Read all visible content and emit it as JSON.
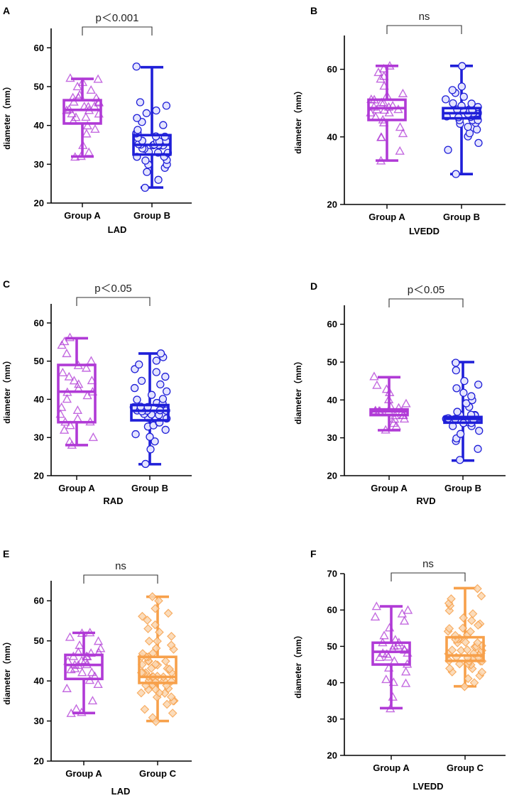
{
  "figure": {
    "title": ""
  },
  "colors": {
    "Group A": "#b03ad6",
    "Group B": "#1f1fd8",
    "Group C": "#f7a04a"
  },
  "markers": {
    "Group A": "triangle",
    "Group B": "circle",
    "Group C": "diamond"
  },
  "chart_data": [
    {
      "id": "A",
      "panel_label": "A",
      "type": "box",
      "xlabel": "LAD",
      "ylabel": "diameter（mm）",
      "ylim": [
        20,
        65
      ],
      "yticks": [
        20,
        30,
        40,
        50,
        60
      ],
      "categories": [
        "Group A",
        "Group B"
      ],
      "significance": "p＜0.001",
      "boxes": [
        {
          "name": "Group A",
          "min": 32,
          "q1": 40.5,
          "median": 44,
          "q3": 46.5,
          "max": 52,
          "points": [
            32,
            32,
            33,
            35,
            38,
            39,
            40,
            41,
            42,
            42,
            43,
            43,
            44,
            44,
            44,
            45,
            45,
            45,
            46,
            46,
            46,
            47,
            47,
            47,
            48,
            49,
            50,
            51,
            52,
            52
          ]
        },
        {
          "name": "Group B",
          "min": 24,
          "q1": 32.5,
          "median": 35,
          "q3": 37.5,
          "max": 55,
          "points": [
            24,
            26,
            28,
            29,
            30,
            30,
            31,
            31,
            32,
            32,
            33,
            33,
            33,
            34,
            34,
            35,
            35,
            35,
            35,
            35,
            35,
            35,
            35,
            36,
            36,
            36,
            36,
            37,
            37,
            37,
            38,
            38,
            39,
            40,
            41,
            42,
            43,
            44,
            45,
            46,
            55
          ]
        }
      ]
    },
    {
      "id": "B",
      "panel_label": "B",
      "type": "box",
      "xlabel": "LVEDD",
      "ylabel": "diameter（mm）",
      "ylim": [
        20,
        70
      ],
      "yticks": [
        20,
        40,
        60
      ],
      "categories": [
        "Group A",
        "Group B"
      ],
      "significance": "ns",
      "boxes": [
        {
          "name": "Group A",
          "min": 33,
          "q1": 45,
          "median": 48.5,
          "q3": 51,
          "max": 61,
          "points": [
            33,
            36,
            40,
            40,
            41,
            43,
            44,
            45,
            46,
            47,
            47,
            48,
            48,
            48,
            49,
            49,
            49,
            50,
            50,
            51,
            51,
            52,
            53,
            55,
            57,
            58,
            59,
            60,
            61
          ]
        },
        {
          "name": "Group B",
          "min": 29,
          "q1": 45.5,
          "median": 47,
          "q3": 48.5,
          "max": 61,
          "points": [
            29,
            36,
            38,
            40,
            41,
            42,
            43,
            44,
            44,
            45,
            45,
            45,
            46,
            46,
            46,
            46,
            47,
            47,
            47,
            47,
            47,
            47,
            47,
            48,
            48,
            48,
            48,
            49,
            49,
            50,
            50,
            51,
            52,
            53,
            54,
            55,
            61
          ]
        }
      ]
    },
    {
      "id": "C",
      "panel_label": "C",
      "type": "box",
      "xlabel": "RAD",
      "ylabel": "diameter（mm）",
      "ylim": [
        20,
        65
      ],
      "yticks": [
        20,
        30,
        40,
        50,
        60
      ],
      "categories": [
        "Group A",
        "Group B"
      ],
      "significance": "p＜0.05",
      "boxes": [
        {
          "name": "Group A",
          "min": 28,
          "q1": 34,
          "median": 42,
          "q3": 49,
          "max": 56,
          "points": [
            28,
            29,
            30,
            32,
            33,
            34,
            34,
            35,
            36,
            37,
            38,
            40,
            41,
            42,
            42,
            43,
            44,
            45,
            45,
            46,
            47,
            48,
            49,
            50,
            52,
            54,
            55,
            56
          ]
        },
        {
          "name": "Group B",
          "min": 23,
          "q1": 34.5,
          "median": 37,
          "q3": 38.5,
          "max": 52,
          "points": [
            23,
            27,
            29,
            30,
            31,
            32,
            33,
            33,
            34,
            34,
            35,
            35,
            35,
            36,
            36,
            36,
            37,
            37,
            37,
            37,
            37,
            37,
            37,
            38,
            38,
            38,
            39,
            39,
            40,
            40,
            41,
            42,
            43,
            44,
            45,
            46,
            47,
            48,
            49,
            50,
            51,
            52
          ]
        }
      ]
    },
    {
      "id": "D",
      "panel_label": "D",
      "type": "box",
      "xlabel": "RVD",
      "ylabel": "diameter（mm）",
      "ylim": [
        20,
        65
      ],
      "yticks": [
        20,
        30,
        40,
        50,
        60
      ],
      "categories": [
        "Group A",
        "Group B"
      ],
      "significance": "p＜0.05",
      "boxes": [
        {
          "name": "Group A",
          "min": 32,
          "q1": 36,
          "median": 37,
          "q3": 37.5,
          "max": 46,
          "points": [
            32,
            33,
            34,
            35,
            35,
            36,
            36,
            36,
            37,
            37,
            37,
            37,
            37,
            37,
            38,
            38,
            39,
            40,
            42,
            43,
            44,
            46
          ]
        },
        {
          "name": "Group B",
          "min": 24,
          "q1": 34,
          "median": 35,
          "q3": 35.5,
          "max": 50,
          "points": [
            24,
            27,
            29,
            30,
            31,
            32,
            33,
            33,
            34,
            34,
            34,
            35,
            35,
            35,
            35,
            35,
            35,
            35,
            35,
            35,
            36,
            36,
            36,
            36,
            37,
            38,
            39,
            40,
            41,
            42,
            43,
            44,
            45,
            48,
            50
          ]
        }
      ]
    },
    {
      "id": "E",
      "panel_label": "E",
      "type": "box",
      "xlabel": "LAD",
      "ylabel": "diameter（mm）",
      "ylim": [
        20,
        65
      ],
      "yticks": [
        20,
        30,
        40,
        50,
        60
      ],
      "categories": [
        "Group A",
        "Group C"
      ],
      "significance": "ns",
      "boxes": [
        {
          "name": "Group A",
          "min": 32,
          "q1": 40.5,
          "median": 44,
          "q3": 46.5,
          "max": 52,
          "points": [
            32,
            32,
            33,
            35,
            38,
            39,
            40,
            41,
            42,
            42,
            43,
            43,
            44,
            44,
            44,
            45,
            45,
            45,
            46,
            46,
            46,
            47,
            47,
            47,
            48,
            49,
            50,
            51,
            52,
            52
          ]
        },
        {
          "name": "Group C",
          "min": 30,
          "q1": 39.5,
          "median": 41,
          "q3": 46,
          "max": 61,
          "points": [
            30,
            31,
            32,
            33,
            34,
            35,
            35,
            36,
            36,
            37,
            37,
            37,
            38,
            38,
            38,
            39,
            39,
            39,
            39,
            40,
            40,
            40,
            40,
            40,
            41,
            41,
            41,
            41,
            41,
            42,
            42,
            42,
            42,
            43,
            43,
            43,
            44,
            44,
            44,
            45,
            45,
            45,
            46,
            46,
            46,
            47,
            47,
            48,
            48,
            49,
            50,
            50,
            51,
            52,
            53,
            54,
            55,
            56,
            57,
            58,
            60,
            61
          ]
        }
      ]
    },
    {
      "id": "F",
      "panel_label": "F",
      "type": "box",
      "xlabel": "LVEDD",
      "ylabel": "diameter（mm）",
      "ylim": [
        20,
        70
      ],
      "yticks": [
        20,
        30,
        40,
        50,
        60,
        70
      ],
      "categories": [
        "Group A",
        "Group C"
      ],
      "significance": "ns",
      "boxes": [
        {
          "name": "Group A",
          "min": 33,
          "q1": 45,
          "median": 48.5,
          "q3": 51,
          "max": 61,
          "points": [
            33,
            36,
            40,
            40,
            41,
            43,
            44,
            45,
            46,
            47,
            47,
            48,
            48,
            48,
            49,
            49,
            49,
            50,
            50,
            51,
            51,
            52,
            53,
            55,
            57,
            58,
            59,
            60,
            61
          ]
        },
        {
          "name": "Group C",
          "min": 39,
          "q1": 46,
          "median": 47.5,
          "q3": 52.5,
          "max": 66,
          "points": [
            39,
            40,
            41,
            42,
            43,
            43,
            44,
            44,
            45,
            45,
            45,
            46,
            46,
            46,
            46,
            47,
            47,
            47,
            47,
            47,
            48,
            48,
            48,
            48,
            49,
            49,
            49,
            49,
            50,
            50,
            50,
            51,
            51,
            51,
            52,
            52,
            52,
            53,
            53,
            54,
            54,
            55,
            55,
            56,
            56,
            57,
            58,
            59,
            60,
            61,
            62,
            63,
            64,
            66
          ]
        }
      ]
    }
  ]
}
